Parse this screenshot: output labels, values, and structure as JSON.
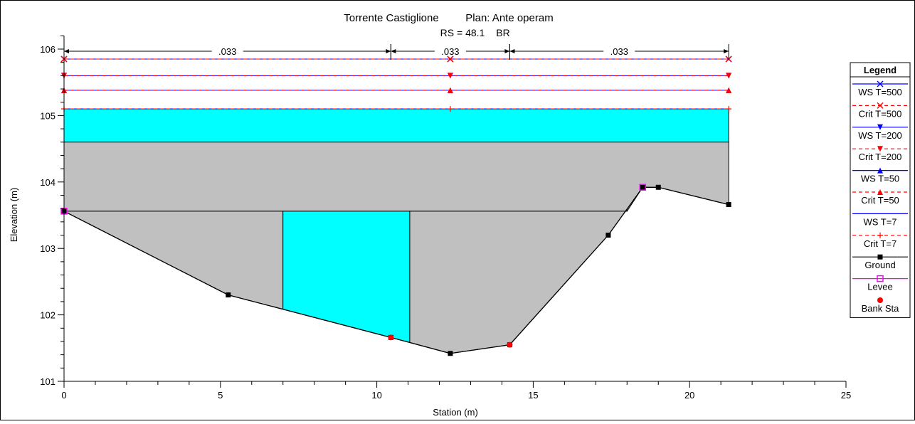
{
  "chart_data": {
    "type": "line",
    "title": "Torrente Castiglione",
    "plan": "Plan: Ante operam",
    "subtitle_rs": "RS = 48.1",
    "subtitle_tag": "BR",
    "xlabel": "Station (m)",
    "ylabel": "Elevation (m)",
    "xlim": [
      0,
      25
    ],
    "ylim": [
      101,
      106.2
    ],
    "x_ticks": [
      "0",
      "5",
      "10",
      "15",
      "20",
      "25"
    ],
    "y_ticks": [
      "101",
      "102",
      "103",
      "104",
      "105",
      "106"
    ],
    "mannings": [
      {
        "from": 0,
        "to": 10.45,
        "label": ".033"
      },
      {
        "from": 10.45,
        "to": 14.25,
        "label": ".033"
      },
      {
        "from": 14.25,
        "to": 21.25,
        "label": ".033"
      }
    ],
    "ground": {
      "x": [
        0,
        5.25,
        10.45,
        12.35,
        14.25,
        17.4,
        18.5,
        19.0,
        21.25
      ],
      "y": [
        103.56,
        102.3,
        101.66,
        101.42,
        101.55,
        103.2,
        103.92,
        103.92,
        103.66
      ]
    },
    "levee": {
      "x": 18.5,
      "y": 103.92
    },
    "left_levee": {
      "x": 0,
      "y": 103.56
    },
    "bank_stations": [
      {
        "x": 10.45,
        "y": 101.66
      },
      {
        "x": 14.25,
        "y": 101.55
      }
    ],
    "bridge": {
      "deck_top": 104.6,
      "low_chord": 103.56,
      "deck_x": [
        0,
        21.25
      ],
      "pier_left_x": [
        0,
        7.0
      ],
      "pier_right_x": [
        11.05,
        18.0
      ]
    },
    "water_fill": {
      "upper": {
        "x": [
          0,
          21.25
        ],
        "y_top": 105.1,
        "y_bottom": 104.6
      },
      "opening": {
        "x": [
          7.0,
          11.05
        ],
        "y_top": 103.56
      }
    },
    "ws_lines": [
      {
        "name": "WS T=500",
        "y": 105.85,
        "marker": "x",
        "style": "solid",
        "color": "#0000ff"
      },
      {
        "name": "Crit T=500",
        "y": 105.85,
        "marker": "x",
        "style": "dashed",
        "color": "#ff0000"
      },
      {
        "name": "WS T=200",
        "y": 105.6,
        "marker": "tri-down",
        "style": "solid",
        "color": "#0000ff"
      },
      {
        "name": "Crit T=200",
        "y": 105.6,
        "marker": "tri-down",
        "style": "dashed",
        "color": "#ff0000"
      },
      {
        "name": "WS T=50",
        "y": 105.38,
        "marker": "tri-up",
        "style": "solid",
        "color": "#0000ff"
      },
      {
        "name": "Crit T=50",
        "y": 105.38,
        "marker": "tri-up",
        "style": "dashed",
        "color": "#ff0000"
      },
      {
        "name": "WS T=7",
        "y": 105.1,
        "marker": "none",
        "style": "solid",
        "color": "#0000ff"
      },
      {
        "name": "Crit T=7",
        "y": 105.1,
        "marker": "plus",
        "style": "dashed",
        "color": "#ff0000"
      }
    ],
    "legend": {
      "title": "Legend",
      "placement": "right",
      "entries": [
        {
          "label": "WS T=500",
          "color": "#0000ff",
          "style": "solid",
          "marker": "x"
        },
        {
          "label": "Crit T=500",
          "color": "#ff0000",
          "style": "dashed",
          "marker": "x"
        },
        {
          "label": "WS T=200",
          "color": "#0000ff",
          "style": "solid",
          "marker": "tri-down"
        },
        {
          "label": "Crit T=200",
          "color": "#ff0000",
          "style": "dashed",
          "marker": "tri-down"
        },
        {
          "label": "WS T=50",
          "color": "#0000ff",
          "style": "solid",
          "marker": "tri-up"
        },
        {
          "label": "Crit T=50",
          "color": "#ff0000",
          "style": "dashed",
          "marker": "tri-up"
        },
        {
          "label": "WS T=7",
          "color": "#0000ff",
          "style": "solid",
          "marker": "none"
        },
        {
          "label": "Crit T=7",
          "color": "#ff0000",
          "style": "dashed",
          "marker": "plus"
        },
        {
          "label": "Ground",
          "color": "#000000",
          "style": "solid",
          "marker": "square"
        },
        {
          "label": "Levee",
          "color": "#ff00ff",
          "style": "solid",
          "marker": "open-square"
        },
        {
          "label": "Bank Sta",
          "color": "#ff0000",
          "style": "none",
          "marker": "dot"
        }
      ]
    },
    "colors": {
      "water": "#00ffff",
      "bridge": "#c0c0c0",
      "ws": "#0000ff",
      "crit": "#ff0000",
      "ground": "#000000",
      "levee": "#ff00ff",
      "bank": "#ff0000"
    }
  }
}
